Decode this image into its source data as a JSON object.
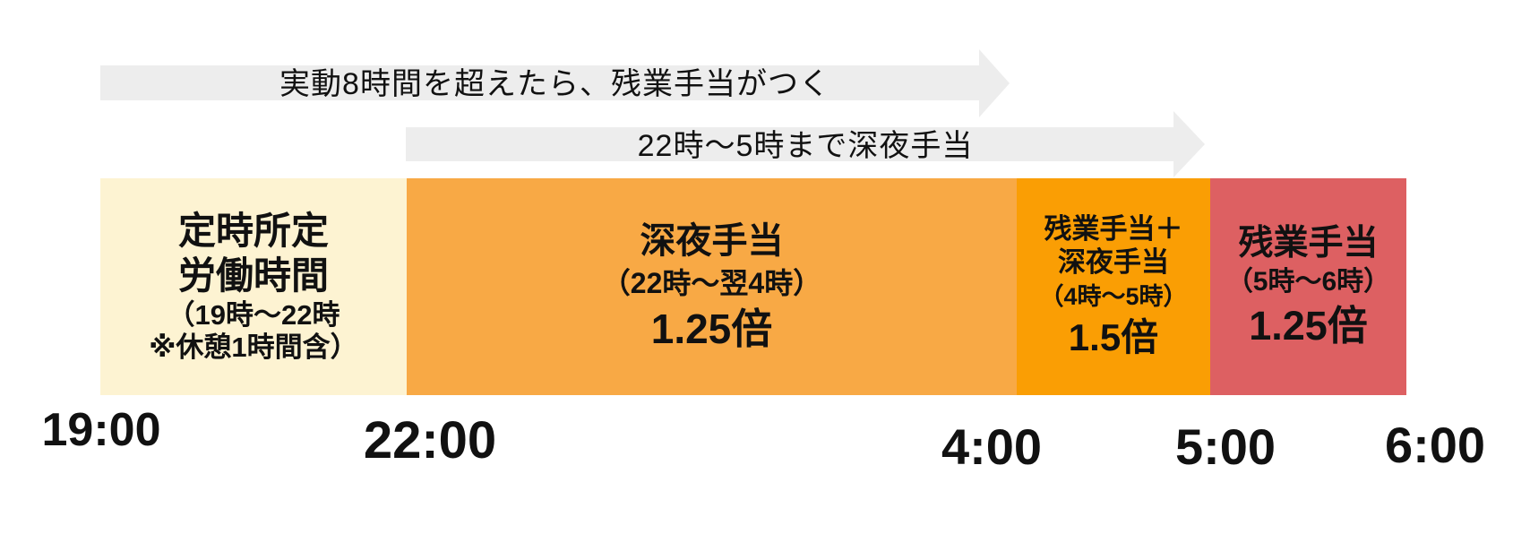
{
  "colors": {
    "arrow_band": "#EDEDED",
    "text": "#111111",
    "segment_regular_bg": "#FDF3D2",
    "segment_night_bg": "#F8A945",
    "segment_overtime_night_bg": "#FA9E04",
    "segment_overtime_bg": "#DD6062"
  },
  "arrows": {
    "overtime_rule": {
      "label": "実動8時間を超えたら、残業手当がつく"
    },
    "late_night_rule": {
      "label": "22時〜5時まで深夜手当"
    }
  },
  "segments": {
    "regular": {
      "title1": "定時所定",
      "title2": "労働時間",
      "sub1": "（19時〜22時",
      "sub2": "※休憩1時間含）",
      "color": "#FDF3D2"
    },
    "night": {
      "title1": "深夜手当",
      "sub1": "（22時〜翌4時）",
      "rate": "1.25倍",
      "color": "#F8A945"
    },
    "overtime_night": {
      "title1": "残業手当＋",
      "title2": "深夜手当",
      "sub1": "（4時〜5時）",
      "rate": "1.5倍",
      "color": "#FA9E04"
    },
    "overtime": {
      "title1": "残業手当",
      "sub1": "（5時〜6時）",
      "rate": "1.25倍",
      "color": "#DD6062"
    }
  },
  "timeline": {
    "ticks": [
      "19:00",
      "22:00",
      "4:00",
      "5:00",
      "6:00"
    ]
  }
}
